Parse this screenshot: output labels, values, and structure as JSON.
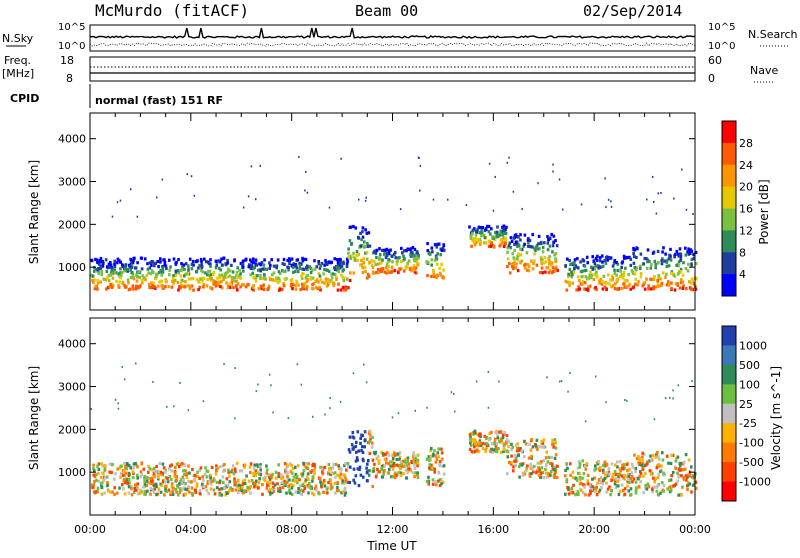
{
  "header": {
    "station": "McMurdo (fitACF)",
    "beam": "Beam 00",
    "date": "02/Sep/2014"
  },
  "top_panel": {
    "nsky_label": "N.Sky",
    "nsky_ticks": [
      "10^5",
      "10^0"
    ],
    "nsearch_label": "N.Search",
    "nsearch_ticks": [
      "10^5",
      "10^0"
    ],
    "freq_label": "Freq.",
    "freq_unit": "[MHz]",
    "freq_ticks": [
      "18",
      "8"
    ],
    "nave_label": "Nave",
    "nave_ticks": [
      "60",
      "0"
    ],
    "cpid_label": "CPID",
    "cpid_text": "normal (fast) 151 RF"
  },
  "chart_data": [
    {
      "type": "heatmap",
      "name": "power-panel",
      "ylabel": "Slant Range [km]",
      "xlabel": "",
      "x_range_hours": [
        0,
        24
      ],
      "ylim": [
        0,
        4600
      ],
      "yticks": [
        1000,
        2000,
        3000,
        4000
      ],
      "colorbar": {
        "label": "Power [dB]",
        "ticks": [
          "28",
          "24",
          "20",
          "16",
          "12",
          "8",
          "4"
        ],
        "colors": [
          "#ff0000",
          "#ff5a00",
          "#ff9600",
          "#e6c800",
          "#7ac143",
          "#2f8c5a",
          "#1f3fa0",
          "#0000ff"
        ]
      }
    },
    {
      "type": "heatmap",
      "name": "velocity-panel",
      "ylabel": "Slant Range [km]",
      "xlabel": "Time UT",
      "x_range_hours": [
        0,
        24
      ],
      "ylim": [
        0,
        4600
      ],
      "yticks": [
        1000,
        2000,
        3000,
        4000
      ],
      "xticks": [
        "00:00",
        "04:00",
        "08:00",
        "12:00",
        "16:00",
        "20:00",
        "00:00"
      ],
      "colorbar": {
        "label": "Velocity [m s^-1]",
        "ticks": [
          "1000",
          "500",
          "100",
          "25",
          "-25",
          "-100",
          "-500",
          "-1000"
        ],
        "colors": [
          "#2040b0",
          "#3a78b8",
          "#2f8c5a",
          "#6cc040",
          "#c0c0c0",
          "#ffb000",
          "#ff7a00",
          "#ff4000",
          "#ff0000"
        ]
      }
    }
  ],
  "legend_note": "Power, velocity and range data drawn as approximate scatter regions"
}
